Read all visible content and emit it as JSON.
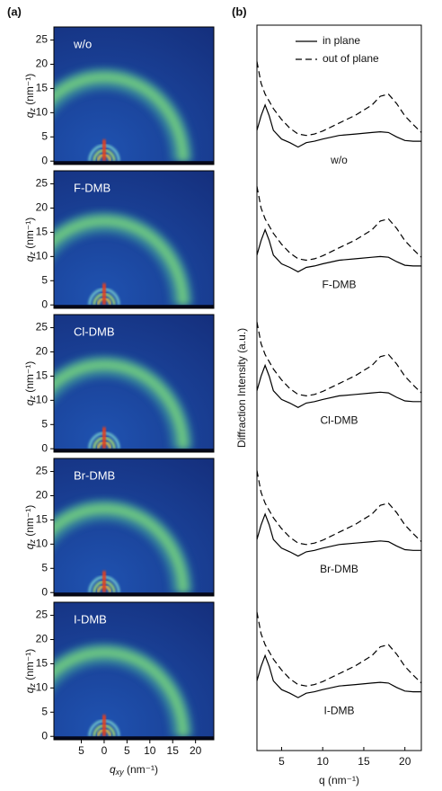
{
  "chart_data": [
    {
      "type": "image",
      "title": "(a)",
      "panels": [
        "w/o",
        "F-DMB",
        "Cl-DMB",
        "Br-DMB",
        "I-DMB"
      ],
      "xlabel": {
        "symbol": "q",
        "subscript": "xy",
        "unit": " (nm⁻¹)"
      },
      "ylabel": {
        "symbol": "q",
        "subscript": "z",
        "unit": " (nm⁻¹)"
      },
      "xlim": [
        -11,
        24
      ],
      "xticks": [
        {
          "value": -5,
          "label": "5"
        },
        0,
        5,
        10,
        15,
        20
      ],
      "ylim": [
        -0.7,
        27.7
      ],
      "yticks": [
        0,
        5,
        10,
        15,
        20,
        25
      ]
    },
    {
      "type": "line",
      "title": "(b)",
      "xlabel": "q (nm⁻¹)",
      "ylabel": "Diffraction Intensity (a.u.)",
      "legend": "upper right",
      "xlim": [
        2,
        22
      ],
      "xticks": [
        5,
        10,
        15,
        20
      ],
      "ylim": [
        0,
        100
      ],
      "samples": [
        "w/o",
        "F-DMB",
        "Cl-DMB",
        "Br-DMB",
        "I-DMB"
      ],
      "x": [
        2,
        2.5,
        3,
        3.5,
        4,
        5,
        6,
        7,
        8,
        9,
        10,
        12,
        14,
        16,
        17,
        18,
        19,
        20,
        21,
        22
      ],
      "series": [
        {
          "name": "in plane",
          "color": "#000000",
          "line_style": "solid",
          "values": [
            [
              85.5,
              87.5,
              89,
              87.5,
              85.5,
              84.3,
              83.8,
              83.2,
              83.8,
              84,
              84.3,
              84.8,
              85,
              85.2,
              85.3,
              85.2,
              84.6,
              84.1,
              84,
              84
            ],
            [
              68.3,
              70.3,
              71.8,
              70.3,
              68.3,
              67.1,
              66.6,
              66,
              66.6,
              66.8,
              67.1,
              67.6,
              67.8,
              68,
              68.1,
              68,
              67.4,
              66.9,
              66.8,
              66.8
            ],
            [
              49.6,
              51.6,
              53.1,
              51.6,
              49.6,
              48.4,
              47.9,
              47.3,
              47.9,
              48.1,
              48.4,
              48.9,
              49.1,
              49.3,
              49.4,
              49.3,
              48.7,
              48.2,
              48.1,
              48.1
            ],
            [
              29.1,
              31.1,
              32.6,
              31.1,
              29.1,
              27.9,
              27.4,
              26.8,
              27.4,
              27.6,
              27.9,
              28.4,
              28.6,
              28.8,
              28.9,
              28.8,
              28.2,
              27.7,
              27.6,
              27.6
            ],
            [
              9.6,
              11.6,
              13.1,
              11.6,
              9.6,
              8.4,
              7.9,
              7.3,
              7.9,
              8.1,
              8.4,
              8.9,
              9.1,
              9.3,
              9.4,
              9.3,
              8.7,
              8.2,
              8.1,
              8.1
            ]
          ]
        },
        {
          "name": "out of plane",
          "color": "#000000",
          "line_style": "dashed",
          "values": [
            [
              95,
              92,
              90.5,
              89.5,
              88.5,
              87,
              85.8,
              85,
              84.8,
              85,
              85.4,
              86.5,
              87.6,
              89,
              90.2,
              90.5,
              89.2,
              87.5,
              86.3,
              85.2
            ],
            [
              77.8,
              74.8,
              73.3,
              72.3,
              71.3,
              69.8,
              68.6,
              67.8,
              67.6,
              67.8,
              68.2,
              69.3,
              70.4,
              71.8,
              73,
              73.3,
              72,
              70.3,
              69.1,
              68
            ],
            [
              59.1,
              56.1,
              54.6,
              53.6,
              52.6,
              51.1,
              49.9,
              49.1,
              48.9,
              49.1,
              49.5,
              50.6,
              51.7,
              53.1,
              54.3,
              54.6,
              53.3,
              51.6,
              50.4,
              49.3
            ],
            [
              38.6,
              35.6,
              34.1,
              33.1,
              32.1,
              30.6,
              29.4,
              28.6,
              28.4,
              28.6,
              29,
              30.1,
              31.2,
              32.6,
              33.8,
              34.1,
              32.8,
              31.1,
              29.9,
              28.8
            ],
            [
              19.1,
              16.1,
              14.6,
              13.6,
              12.6,
              11.1,
              9.9,
              9.1,
              8.9,
              9.1,
              9.5,
              10.6,
              11.7,
              13.1,
              14.3,
              14.6,
              13.3,
              11.6,
              10.4,
              9.3
            ]
          ]
        }
      ]
    }
  ]
}
